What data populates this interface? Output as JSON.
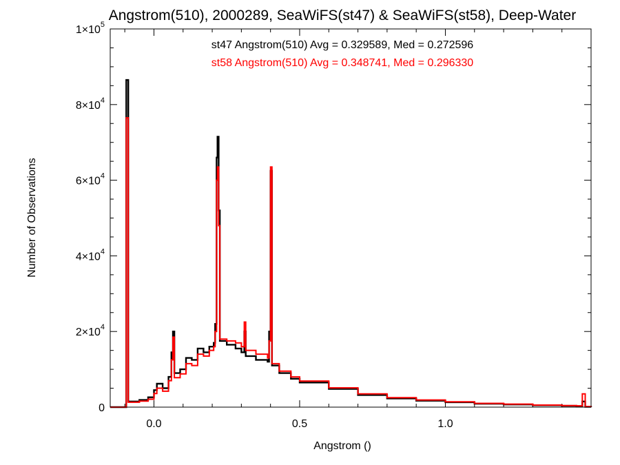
{
  "chart_data": {
    "type": "line",
    "style": "step-histogram",
    "title": "Angstrom(510), 2000289, SeaWiFS(st47) & SeaWiFS(st58), Deep-Water",
    "xlabel": "Angstrom ()",
    "ylabel": "Number of Observations",
    "xlim": [
      -0.15,
      1.5
    ],
    "ylim": [
      0,
      100000
    ],
    "x_ticks": [
      {
        "value": 0.0,
        "label": "0.0"
      },
      {
        "value": 0.5,
        "label": "0.5"
      },
      {
        "value": 1.0,
        "label": "1.0"
      }
    ],
    "y_ticks": [
      {
        "value": 0,
        "mantissa": "0",
        "exponent": ""
      },
      {
        "value": 20000,
        "mantissa": "2×10",
        "exponent": "4"
      },
      {
        "value": 40000,
        "mantissa": "4×10",
        "exponent": "4"
      },
      {
        "value": 60000,
        "mantissa": "6×10",
        "exponent": "4"
      },
      {
        "value": 80000,
        "mantissa": "8×10",
        "exponent": "4"
      },
      {
        "value": 100000,
        "mantissa": "1×10",
        "exponent": "5"
      }
    ],
    "annotations": [
      {
        "text": "st47 Angstrom(510) Avg = 0.329589, Med = 0.272596",
        "color": "#000000"
      },
      {
        "text": "st58 Angstrom(510) Avg = 0.348741, Med = 0.296330",
        "color": "#ff0000"
      }
    ],
    "series": [
      {
        "color": "#000000",
        "points": [
          [
            -0.15,
            0
          ],
          [
            -0.095,
            0
          ],
          [
            -0.095,
            86500
          ],
          [
            -0.088,
            86500
          ],
          [
            -0.088,
            1500
          ],
          [
            -0.05,
            1900
          ],
          [
            -0.02,
            2600
          ],
          [
            0.0,
            4500
          ],
          [
            0.01,
            6200
          ],
          [
            0.03,
            5000
          ],
          [
            0.05,
            8000
          ],
          [
            0.06,
            14500
          ],
          [
            0.065,
            20000
          ],
          [
            0.07,
            9000
          ],
          [
            0.09,
            10000
          ],
          [
            0.11,
            13000
          ],
          [
            0.13,
            12500
          ],
          [
            0.15,
            15500
          ],
          [
            0.17,
            14500
          ],
          [
            0.19,
            16000
          ],
          [
            0.205,
            17000
          ],
          [
            0.21,
            22000
          ],
          [
            0.215,
            66000
          ],
          [
            0.218,
            71500
          ],
          [
            0.222,
            52000
          ],
          [
            0.226,
            17500
          ],
          [
            0.25,
            16500
          ],
          [
            0.28,
            15500
          ],
          [
            0.3,
            14500
          ],
          [
            0.31,
            20000
          ],
          [
            0.315,
            13500
          ],
          [
            0.35,
            12500
          ],
          [
            0.39,
            12000
          ],
          [
            0.395,
            20000
          ],
          [
            0.4,
            62500
          ],
          [
            0.405,
            11000
          ],
          [
            0.43,
            9000
          ],
          [
            0.47,
            7500
          ],
          [
            0.5,
            6500
          ],
          [
            0.6,
            4800
          ],
          [
            0.7,
            3200
          ],
          [
            0.8,
            2300
          ],
          [
            0.9,
            1700
          ],
          [
            1.0,
            1300
          ],
          [
            1.1,
            900
          ],
          [
            1.2,
            700
          ],
          [
            1.3,
            500
          ],
          [
            1.4,
            350
          ],
          [
            1.45,
            300
          ],
          [
            1.47,
            1500
          ],
          [
            1.48,
            100
          ],
          [
            1.5,
            0
          ]
        ]
      },
      {
        "color": "#ff0000",
        "points": [
          [
            -0.15,
            0
          ],
          [
            -0.095,
            0
          ],
          [
            -0.095,
            76500
          ],
          [
            -0.088,
            76500
          ],
          [
            -0.088,
            1300
          ],
          [
            -0.05,
            1600
          ],
          [
            -0.02,
            2100
          ],
          [
            0.0,
            3600
          ],
          [
            0.01,
            5000
          ],
          [
            0.03,
            4200
          ],
          [
            0.05,
            7000
          ],
          [
            0.06,
            12500
          ],
          [
            0.065,
            18500
          ],
          [
            0.07,
            7800
          ],
          [
            0.09,
            8800
          ],
          [
            0.11,
            11500
          ],
          [
            0.13,
            11000
          ],
          [
            0.15,
            14000
          ],
          [
            0.17,
            13500
          ],
          [
            0.19,
            15000
          ],
          [
            0.205,
            16000
          ],
          [
            0.21,
            20000
          ],
          [
            0.215,
            60000
          ],
          [
            0.218,
            63500
          ],
          [
            0.222,
            48000
          ],
          [
            0.226,
            18000
          ],
          [
            0.25,
            17500
          ],
          [
            0.28,
            17000
          ],
          [
            0.3,
            16000
          ],
          [
            0.31,
            22500
          ],
          [
            0.315,
            15000
          ],
          [
            0.35,
            14000
          ],
          [
            0.39,
            13000
          ],
          [
            0.395,
            17500
          ],
          [
            0.4,
            63500
          ],
          [
            0.405,
            11500
          ],
          [
            0.43,
            9500
          ],
          [
            0.47,
            8000
          ],
          [
            0.5,
            6900
          ],
          [
            0.6,
            5100
          ],
          [
            0.7,
            3500
          ],
          [
            0.8,
            2500
          ],
          [
            0.9,
            1900
          ],
          [
            1.0,
            1400
          ],
          [
            1.1,
            1000
          ],
          [
            1.2,
            800
          ],
          [
            1.3,
            550
          ],
          [
            1.4,
            400
          ],
          [
            1.45,
            350
          ],
          [
            1.47,
            3500
          ],
          [
            1.48,
            150
          ],
          [
            1.5,
            0
          ]
        ]
      }
    ]
  }
}
